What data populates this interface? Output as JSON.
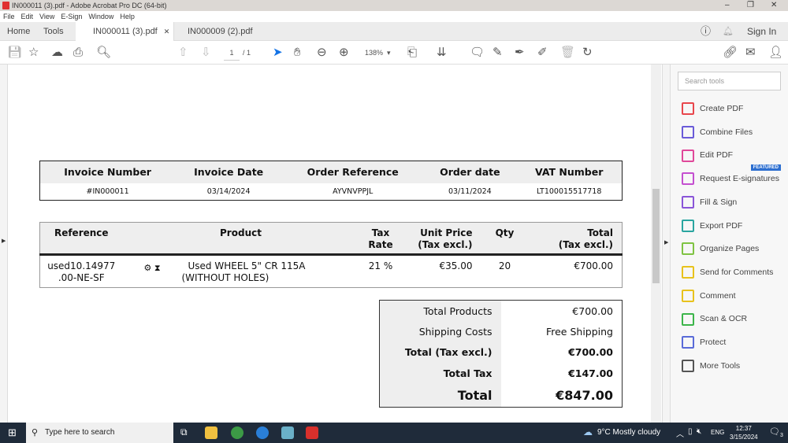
{
  "window": {
    "title": "IN000011 (3).pdf - Adobe Acrobat Pro DC (64-bit)"
  },
  "menu": [
    "File",
    "Edit",
    "View",
    "E-Sign",
    "Window",
    "Help"
  ],
  "tabs": {
    "home": "Home",
    "tools": "Tools",
    "docs": [
      {
        "label": "IN000011 (3).pdf",
        "active": true
      },
      {
        "label": "IN000009 (2).pdf",
        "active": false
      }
    ],
    "sign_in": "Sign In"
  },
  "toolbar": {
    "page_current": "1",
    "page_total": "/ 1",
    "zoom": "138%"
  },
  "invoice": {
    "headers": [
      "Invoice Number",
      "Invoice Date",
      "Order Reference",
      "Order date",
      "VAT Number"
    ],
    "values": [
      "#IN000011",
      "03/14/2024",
      "AYVNVPPJL",
      "03/11/2024",
      "LT100015517718"
    ]
  },
  "products": {
    "headers": {
      "reference": "Reference",
      "product": "Product",
      "tax_rate_1": "Tax",
      "tax_rate_2": "Rate",
      "unit_price_1": "Unit Price",
      "unit_price_2": "(Tax excl.)",
      "qty": "Qty",
      "total_1": "Total",
      "total_2": "(Tax excl.)"
    },
    "rows": [
      {
        "reference_1": "used10.14977",
        "reference_2": ".00-NE-SF",
        "product_1": "Used WHEEL 5\" CR 115A",
        "product_2": "(WITHOUT HOLES)",
        "tax_rate": "21 %",
        "unit_price": "€35.00",
        "qty": "20",
        "total": "€700.00"
      }
    ]
  },
  "totals": [
    {
      "label": "Total Products",
      "value": "€700.00"
    },
    {
      "label": "Shipping Costs",
      "value": "Free Shipping"
    },
    {
      "label": "Total (Tax excl.)",
      "value": "€700.00"
    },
    {
      "label": "Total Tax",
      "value": "€147.00"
    },
    {
      "label": "Total",
      "value": "€847.00"
    }
  ],
  "panel": {
    "search_placeholder": "Search tools",
    "featured": "FEATURED",
    "tools": [
      {
        "label": "Create PDF",
        "color": "#e8464c"
      },
      {
        "label": "Combine Files",
        "color": "#6a5bd8"
      },
      {
        "label": "Edit PDF",
        "color": "#e0489a"
      },
      {
        "label": "Request E-signatures",
        "color": "#c44fd0"
      },
      {
        "label": "Fill & Sign",
        "color": "#8a55d8"
      },
      {
        "label": "Export PDF",
        "color": "#2aa5a0"
      },
      {
        "label": "Organize Pages",
        "color": "#7fc343"
      },
      {
        "label": "Send for Comments",
        "color": "#e8c21c"
      },
      {
        "label": "Comment",
        "color": "#e8c21c"
      },
      {
        "label": "Scan & OCR",
        "color": "#3cb54a"
      },
      {
        "label": "Protect",
        "color": "#5a6bd8"
      },
      {
        "label": "More Tools",
        "color": "#555555"
      }
    ]
  },
  "taskbar": {
    "search_placeholder": "Type here to search",
    "weather": "9°C  Mostly cloudy",
    "lang": "ENG",
    "time": "12:37",
    "date": "3/15/2024",
    "notifications": "3"
  }
}
